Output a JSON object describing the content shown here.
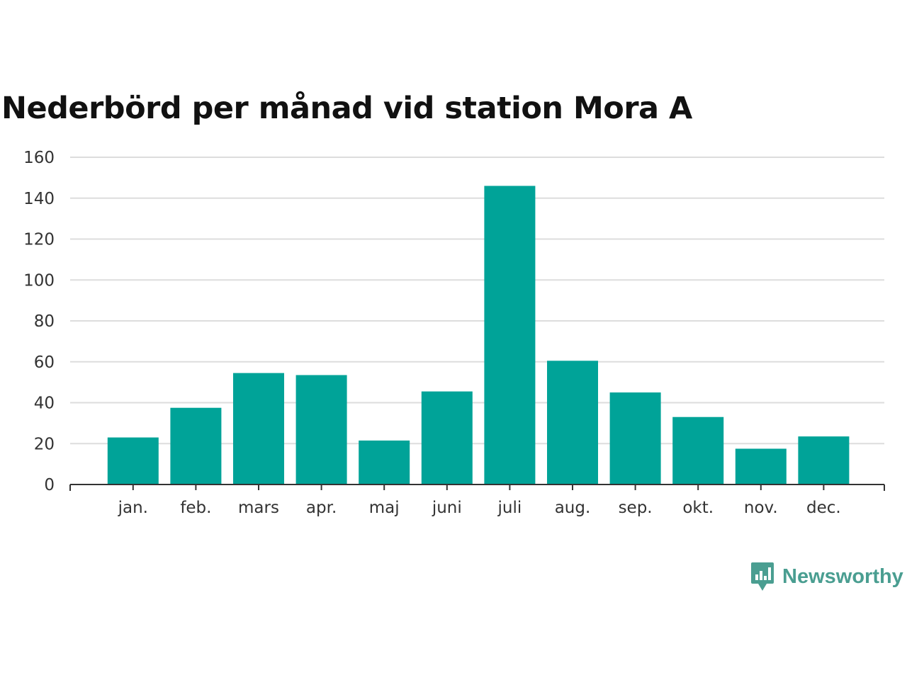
{
  "title": "Nederbörd per månad vid station Mora A",
  "colors": {
    "bar": "#00a398",
    "grid": "#dddddd",
    "axis": "#333333",
    "brand": "#4a9e91"
  },
  "brand": {
    "name": "Newsworthy",
    "icon": "newsworthy-logo-icon"
  },
  "chart_data": {
    "type": "bar",
    "title": "Nederbörd per månad vid station Mora A",
    "xlabel": "",
    "ylabel": "",
    "categories": [
      "jan.",
      "feb.",
      "mars",
      "apr.",
      "maj",
      "juni",
      "juli",
      "aug.",
      "sep.",
      "okt.",
      "nov.",
      "dec."
    ],
    "values": [
      23,
      37.5,
      54.5,
      53.5,
      21.5,
      45.5,
      146,
      60.5,
      45,
      33,
      17.5,
      23.5
    ],
    "ylim": [
      0,
      160
    ],
    "yticks": [
      0,
      20,
      40,
      60,
      80,
      100,
      120,
      140,
      160
    ],
    "grid": true,
    "legend": "none"
  }
}
